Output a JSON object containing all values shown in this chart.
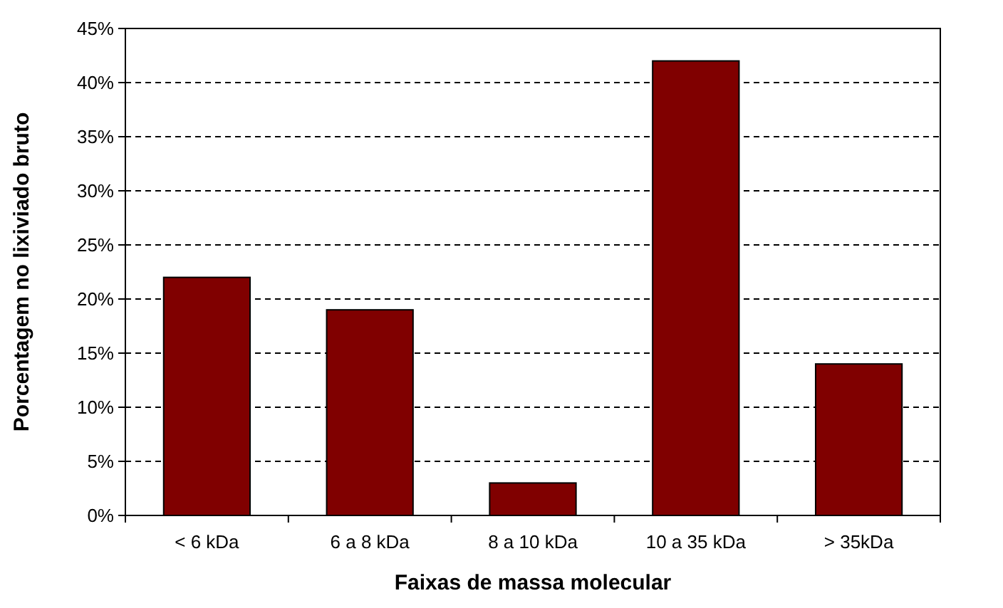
{
  "chart_data": {
    "type": "bar",
    "xlabel": "Faixas de massa molecular",
    "ylabel": "Porcentagem no lixiviado bruto",
    "categories": [
      "< 6 kDa",
      "6 a 8 kDa",
      "8 a 10 kDa",
      "10 a 35 kDa",
      "> 35kDa"
    ],
    "values": [
      22,
      19,
      3,
      42,
      14
    ],
    "color": "#800000",
    "ylim": [
      0,
      45
    ],
    "yticks": [
      {
        "value": 0,
        "label": "0%"
      },
      {
        "value": 5,
        "label": "5%"
      },
      {
        "value": 10,
        "label": "10%"
      },
      {
        "value": 15,
        "label": "15%"
      },
      {
        "value": 20,
        "label": "20%"
      },
      {
        "value": 25,
        "label": "25%"
      },
      {
        "value": 30,
        "label": "30%"
      },
      {
        "value": 35,
        "label": "35%"
      },
      {
        "value": 40,
        "label": "40%"
      },
      {
        "value": 45,
        "label": "45%"
      }
    ],
    "grid": "y"
  }
}
